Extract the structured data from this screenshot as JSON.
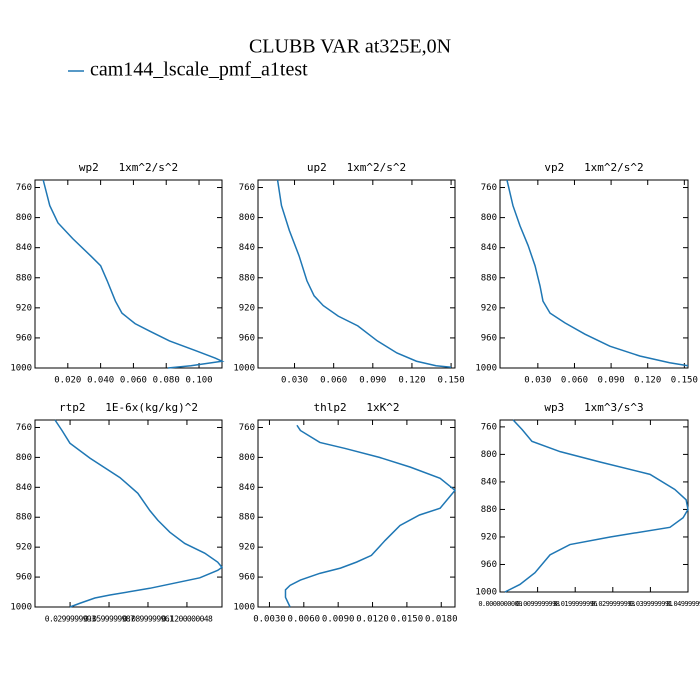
{
  "title": "CLUBB VAR at325E,0N",
  "legend": [
    {
      "name": "cam144_lscale_pmf_a1test",
      "color": "#1f77b4"
    }
  ],
  "chart_data": [
    {
      "type": "line",
      "title": "wp2   1xm^2/s^2",
      "y": [
        750,
        784,
        807,
        828,
        851,
        864,
        884,
        911,
        927,
        941,
        951,
        964,
        977,
        987,
        991,
        997,
        1000
      ],
      "series": [
        {
          "color": "#1f77b4",
          "values": [
            0.005,
            0.009,
            0.014,
            0.023,
            0.034,
            0.04,
            0.044,
            0.049,
            0.053,
            0.061,
            0.07,
            0.082,
            0.098,
            0.11,
            0.114,
            0.095,
            0.081
          ]
        }
      ],
      "xlim": [
        0,
        0.114
      ],
      "ylim": [
        1000,
        750
      ],
      "xticks": [
        {
          "value": 0.02,
          "label": "0.020"
        },
        {
          "value": 0.04,
          "label": "0.040"
        },
        {
          "value": 0.06,
          "label": "0.060"
        },
        {
          "value": 0.08,
          "label": "0.080"
        },
        {
          "value": 0.1,
          "label": "0.100"
        }
      ],
      "yticks": [
        760,
        800,
        840,
        880,
        920,
        960,
        1000
      ]
    },
    {
      "type": "line",
      "title": "up2   1xm^2/s^2",
      "y": [
        750,
        784,
        817,
        851,
        884,
        904,
        917,
        931,
        944,
        964,
        980,
        991,
        997,
        999
      ],
      "series": [
        {
          "color": "#1f77b4",
          "values": [
            0.017,
            0.02,
            0.026,
            0.0335,
            0.0395,
            0.045,
            0.052,
            0.0635,
            0.0785,
            0.0935,
            0.1085,
            0.1235,
            0.1385,
            0.15
          ]
        }
      ],
      "xlim": [
        0.002,
        0.153
      ],
      "ylim": [
        1000,
        750
      ],
      "xticks": [
        {
          "value": 0.03,
          "label": "0.030"
        },
        {
          "value": 0.06,
          "label": "0.060"
        },
        {
          "value": 0.09,
          "label": "0.090"
        },
        {
          "value": 0.12,
          "label": "0.120"
        },
        {
          "value": 0.15,
          "label": "0.150"
        }
      ],
      "yticks": [
        760,
        800,
        840,
        880,
        920,
        960,
        1000
      ]
    },
    {
      "type": "line",
      "title": "vp2   1xm^2/s^2",
      "y": [
        750,
        784,
        811,
        837,
        864,
        891,
        911,
        927,
        940,
        955,
        971,
        984,
        993,
        997
      ],
      "series": [
        {
          "color": "#1f77b4",
          "values": [
            0.0047,
            0.0096,
            0.0154,
            0.022,
            0.0277,
            0.0318,
            0.0342,
            0.04,
            0.0522,
            0.0686,
            0.089,
            0.1135,
            0.138,
            0.153
          ]
        }
      ],
      "xlim": [
        -0.001,
        0.153
      ],
      "ylim": [
        1000,
        750
      ],
      "xticks": [
        {
          "value": 0.03,
          "label": "0.030"
        },
        {
          "value": 0.06,
          "label": "0.060"
        },
        {
          "value": 0.09,
          "label": "0.090"
        },
        {
          "value": 0.12,
          "label": "0.120"
        },
        {
          "value": 0.15,
          "label": "0.150"
        }
      ],
      "yticks": [
        760,
        800,
        840,
        880,
        920,
        960,
        1000
      ]
    },
    {
      "type": "line",
      "title": "rtp2   1E-6x(kg/kg)^2",
      "y": [
        750,
        764,
        781,
        801,
        827,
        848,
        871,
        884,
        900,
        915,
        928,
        940,
        947,
        951,
        961,
        975,
        984,
        988,
        995,
        1000
      ],
      "series": [
        {
          "color": "#1f77b4",
          "values": [
            0.0184,
            0.0238,
            0.0299,
            0.0453,
            0.0684,
            0.0822,
            0.0914,
            0.0976,
            0.1068,
            0.1183,
            0.1337,
            0.1437,
            0.147,
            0.1437,
            0.1299,
            0.0914,
            0.0607,
            0.0491,
            0.0376,
            0.0299
          ]
        }
      ],
      "xlim": [
        0.003,
        0.147
      ],
      "ylim": [
        1000,
        750
      ],
      "xticks": [
        {
          "value": 0.03,
          "label": "0.0299999993"
        },
        {
          "value": 0.06,
          "label": "0.0599999987"
        },
        {
          "value": 0.09,
          "label": "0.0899999961"
        },
        {
          "value": 0.12,
          "label": "0.1200000048"
        }
      ],
      "yticks": [
        760,
        800,
        840,
        880,
        920,
        960,
        1000
      ]
    },
    {
      "type": "line",
      "title": "thlp2   1xK^2",
      "y": [
        757,
        764,
        780,
        788,
        800,
        813,
        828,
        844,
        868,
        877,
        891,
        911,
        931,
        940,
        948,
        955,
        964,
        971,
        977,
        987,
        1000
      ],
      "series": [
        {
          "color": "#1f77b4",
          "values": [
            0.0054,
            0.0057,
            0.0074,
            0.0096,
            0.0126,
            0.0153,
            0.0179,
            0.0192,
            0.0179,
            0.0161,
            0.0144,
            0.0131,
            0.0119,
            0.0106,
            0.0092,
            0.0074,
            0.0057,
            0.0048,
            0.0044,
            0.0044,
            0.0048
          ]
        }
      ],
      "xlim": [
        0.002,
        0.0192
      ],
      "ylim": [
        1000,
        750
      ],
      "xticks": [
        {
          "value": 0.003,
          "label": "0.0030"
        },
        {
          "value": 0.006,
          "label": "0.0060"
        },
        {
          "value": 0.009,
          "label": "0.0090"
        },
        {
          "value": 0.012,
          "label": "0.0120"
        },
        {
          "value": 0.015,
          "label": "0.0150"
        },
        {
          "value": 0.018,
          "label": "0.0180"
        }
      ],
      "yticks": [
        760,
        800,
        840,
        880,
        920,
        960,
        1000
      ]
    },
    {
      "type": "line",
      "title": "wp3   1xm^3/s^3",
      "y": [
        750,
        764,
        781,
        796,
        811,
        829,
        851,
        866,
        880,
        892,
        906,
        920,
        931,
        946,
        972,
        989,
        1000
      ],
      "series": [
        {
          "color": "#1f77b4",
          "values": [
            0.0035,
            0.0059,
            0.0085,
            0.016,
            0.0266,
            0.0399,
            0.0465,
            0.0495,
            0.05,
            0.0487,
            0.0452,
            0.0293,
            0.0186,
            0.0133,
            0.0093,
            0.0053,
            0.0013
          ]
        }
      ],
      "xlim": [
        0,
        0.05
      ],
      "ylim": [
        1000,
        750
      ],
      "xticks": [
        {
          "value": 0,
          "label": "0.0000000000"
        },
        {
          "value": 0.01,
          "label": "0.0099999998"
        },
        {
          "value": 0.02,
          "label": "0.0199999996"
        },
        {
          "value": 0.03,
          "label": "0.0299999993"
        },
        {
          "value": 0.04,
          "label": "0.0399999991"
        },
        {
          "value": 0.05,
          "label": "0.0499999970"
        }
      ],
      "yticks": [
        760,
        800,
        840,
        880,
        920,
        960,
        1000
      ]
    }
  ]
}
